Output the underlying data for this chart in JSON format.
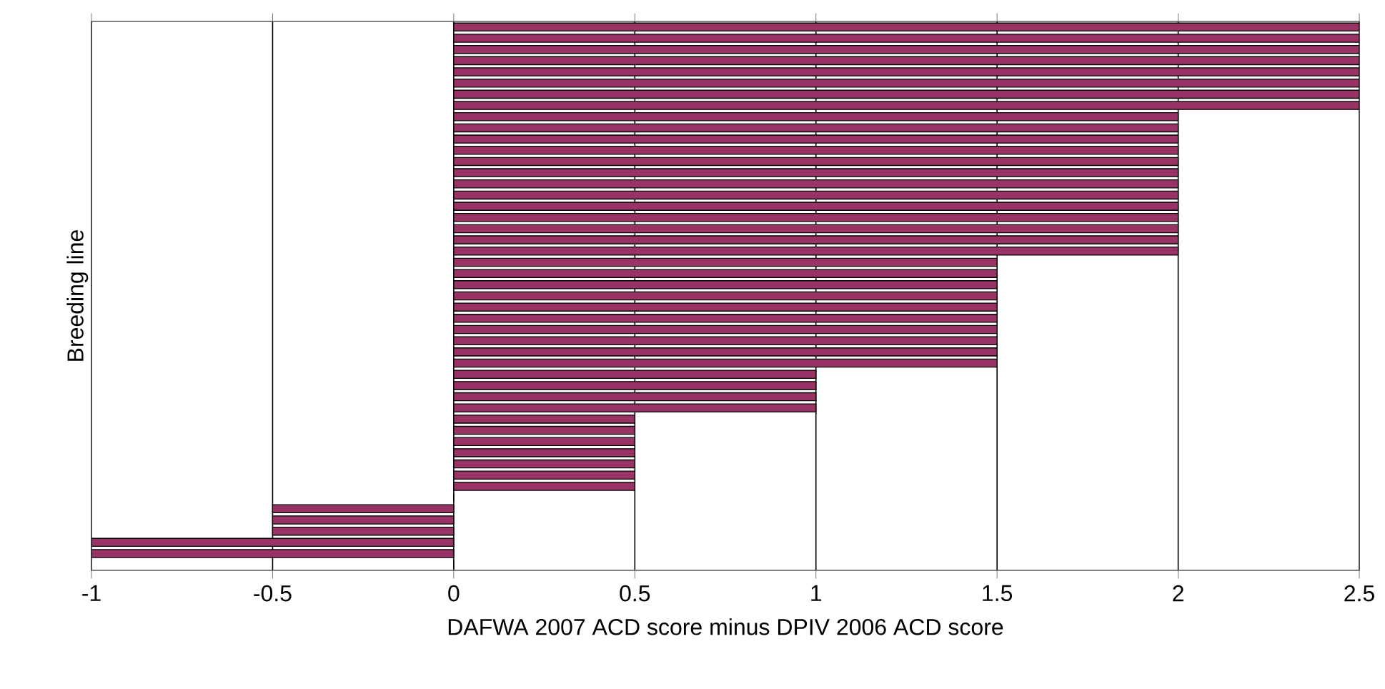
{
  "chart_data": {
    "type": "bar",
    "orientation": "horizontal",
    "xlabel": "DAFWA 2007 ACD score minus DPIV 2006 ACD score",
    "ylabel": "Breeding line",
    "categories": [
      null,
      null,
      null,
      null,
      null,
      null,
      null,
      null,
      null,
      null,
      null,
      null,
      null,
      null,
      null,
      null,
      null,
      null,
      null,
      null,
      null,
      null,
      null,
      null,
      null,
      null,
      null,
      null,
      null,
      null,
      null,
      null,
      null,
      null,
      null,
      null,
      null,
      null,
      null,
      null,
      null,
      null,
      null,
      null,
      null,
      null,
      null,
      null,
      null
    ],
    "values": [
      2.5,
      2.5,
      2.5,
      2.5,
      2.5,
      2.5,
      2.5,
      2.5,
      2,
      2,
      2,
      2,
      2,
      2,
      2,
      2,
      2,
      2,
      2,
      2,
      2,
      1.5,
      1.5,
      1.5,
      1.5,
      1.5,
      1.5,
      1.5,
      1.5,
      1.5,
      1.5,
      1,
      1,
      1,
      1,
      0.5,
      0.5,
      0.5,
      0.5,
      0.5,
      0.5,
      0.5,
      0,
      -0.5,
      -0.5,
      -0.5,
      -1,
      -1,
      0
    ],
    "color": "#993366",
    "xlim": [
      -1,
      2.5
    ],
    "xticks": [
      -1,
      -0.5,
      0,
      0.5,
      1,
      1.5,
      2,
      2.5
    ],
    "grid": "x"
  }
}
